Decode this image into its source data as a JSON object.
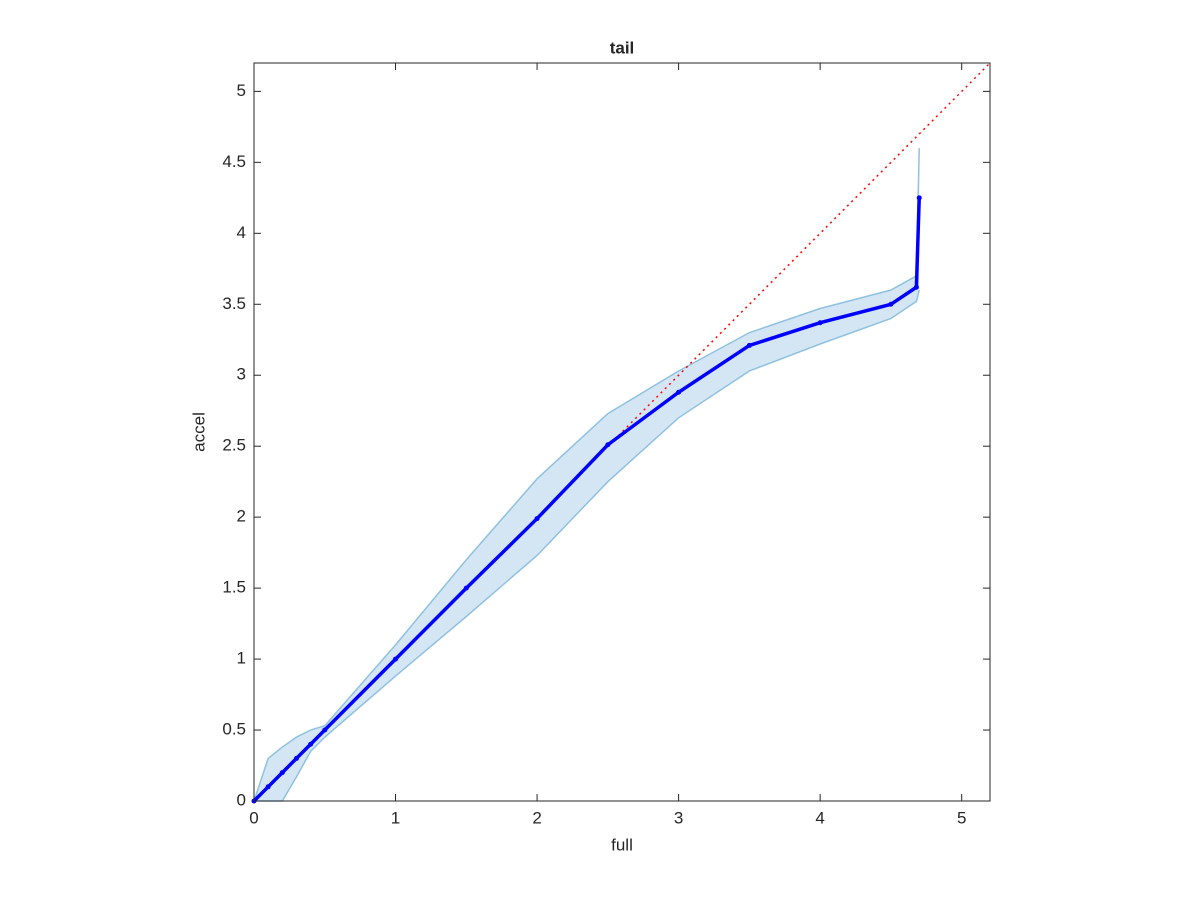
{
  "chart_data": {
    "type": "line",
    "title": "tail",
    "xlabel": "full",
    "ylabel": "accel",
    "x": [
      0,
      0.1,
      0.2,
      0.3,
      0.4,
      0.5,
      1,
      1.5,
      2,
      2.5,
      3,
      3.5,
      4,
      4.5,
      4.68,
      4.7
    ],
    "series": [
      {
        "color": "#0000ff",
        "markers": true,
        "values": [
          0,
          0.1,
          0.2,
          0.3,
          0.4,
          0.5,
          1,
          1.5,
          1.99,
          2.51,
          2.88,
          3.21,
          3.37,
          3.5,
          3.62,
          4.25
        ]
      },
      {
        "color": "#8fc1e0",
        "values": [
          0,
          0.3,
          0.38,
          0.45,
          0.5,
          0.53,
          1.1,
          1.7,
          2.27,
          2.73,
          3.03,
          3.3,
          3.47,
          3.6,
          3.7,
          4.6
        ]
      },
      {
        "color": "#8fc1e0",
        "values": [
          0,
          0,
          0,
          0.17,
          0.35,
          0.45,
          0.88,
          1.3,
          1.73,
          2.25,
          2.7,
          3.03,
          3.22,
          3.4,
          3.52,
          3.6
        ]
      }
    ],
    "band_color": "#d4e6f3",
    "reference": {
      "x": [
        0,
        5.2
      ],
      "values": [
        0,
        5.2
      ],
      "color": "#ff0000",
      "dotted": true
    },
    "xlim": [
      0,
      5.2
    ],
    "ylim": [
      0,
      5.2
    ],
    "xticks": [
      0,
      1,
      2,
      3,
      4,
      5
    ],
    "yticks": [
      0,
      0.5,
      1,
      1.5,
      2,
      2.5,
      3,
      3.5,
      4,
      4.5,
      5
    ]
  }
}
